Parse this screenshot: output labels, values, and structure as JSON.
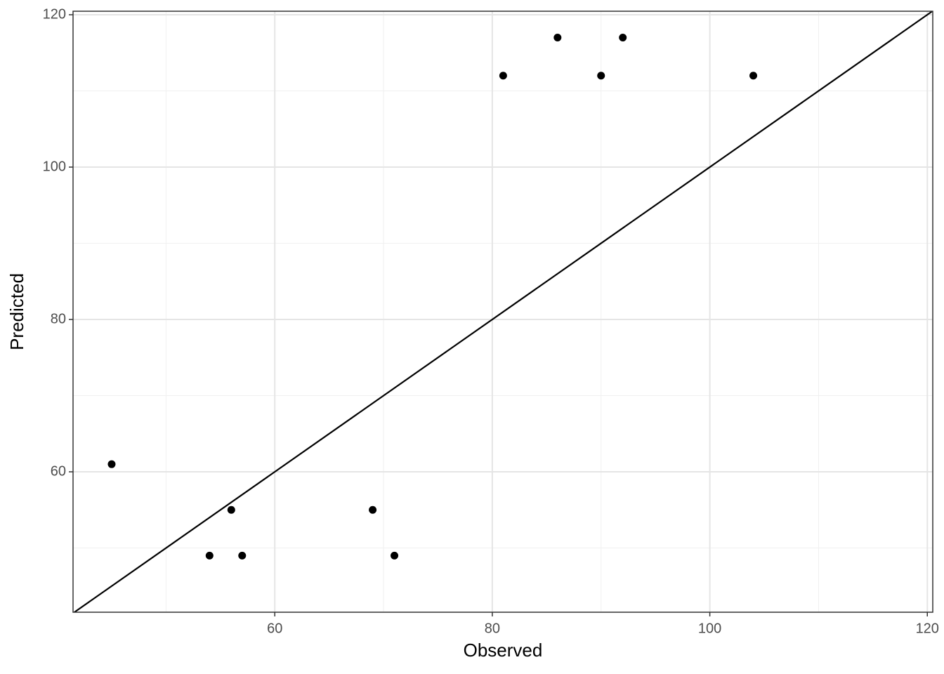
{
  "chart_data": {
    "type": "scatter",
    "x_label": "Observed",
    "y_label": "Predicted",
    "x": [
      45,
      54,
      56,
      57,
      69,
      71,
      81,
      86,
      90,
      92,
      104
    ],
    "series": [
      {
        "color": "#000000",
        "values": [
          61,
          49,
          55,
          49,
          55,
          49,
          112,
          117,
          112,
          117,
          112
        ]
      }
    ],
    "xlim": [
      41.45,
      120.5
    ],
    "ylim": [
      41.57,
      120.46
    ],
    "xticks": [
      60,
      80,
      100,
      120
    ],
    "yticks": [
      60,
      80,
      100,
      120
    ],
    "x_minor_ticks": [
      50,
      70,
      90,
      110
    ],
    "y_minor_ticks": [
      50,
      70,
      90,
      110
    ],
    "grid": true,
    "reference_line": {
      "slope": 1,
      "intercept": 0,
      "color": "#000000"
    }
  }
}
